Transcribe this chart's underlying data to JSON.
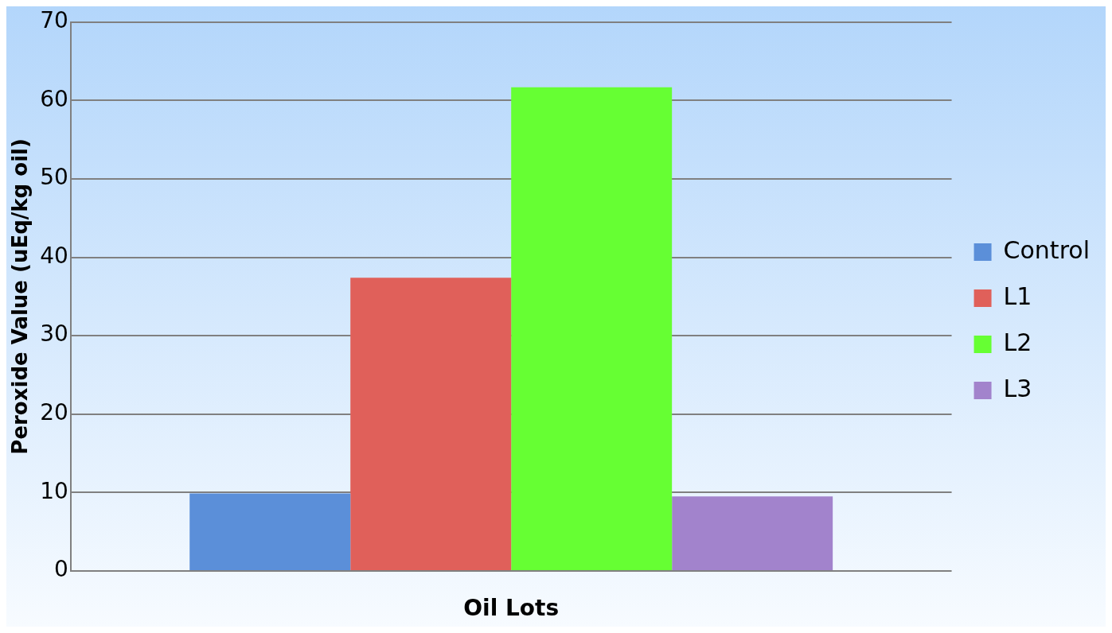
{
  "chart_data": {
    "type": "bar",
    "xlabel": "Oil Lots",
    "ylabel": "Peroxide Value (uEq/kg oil)",
    "categories": [
      null
    ],
    "series": [
      {
        "name": "Control",
        "color": "#5b8fd9",
        "values": [
          9.9
        ]
      },
      {
        "name": "L1",
        "color": "#e0605a",
        "values": [
          37.4
        ]
      },
      {
        "name": "L2",
        "color": "#66ff33",
        "values": [
          61.7
        ]
      },
      {
        "name": "L3",
        "color": "#a283cc",
        "values": [
          9.5
        ]
      }
    ],
    "ylim": [
      0,
      70
    ],
    "yticks": [
      0,
      10,
      20,
      30,
      40,
      50,
      60,
      70
    ],
    "grid": "y",
    "legend": "right"
  }
}
